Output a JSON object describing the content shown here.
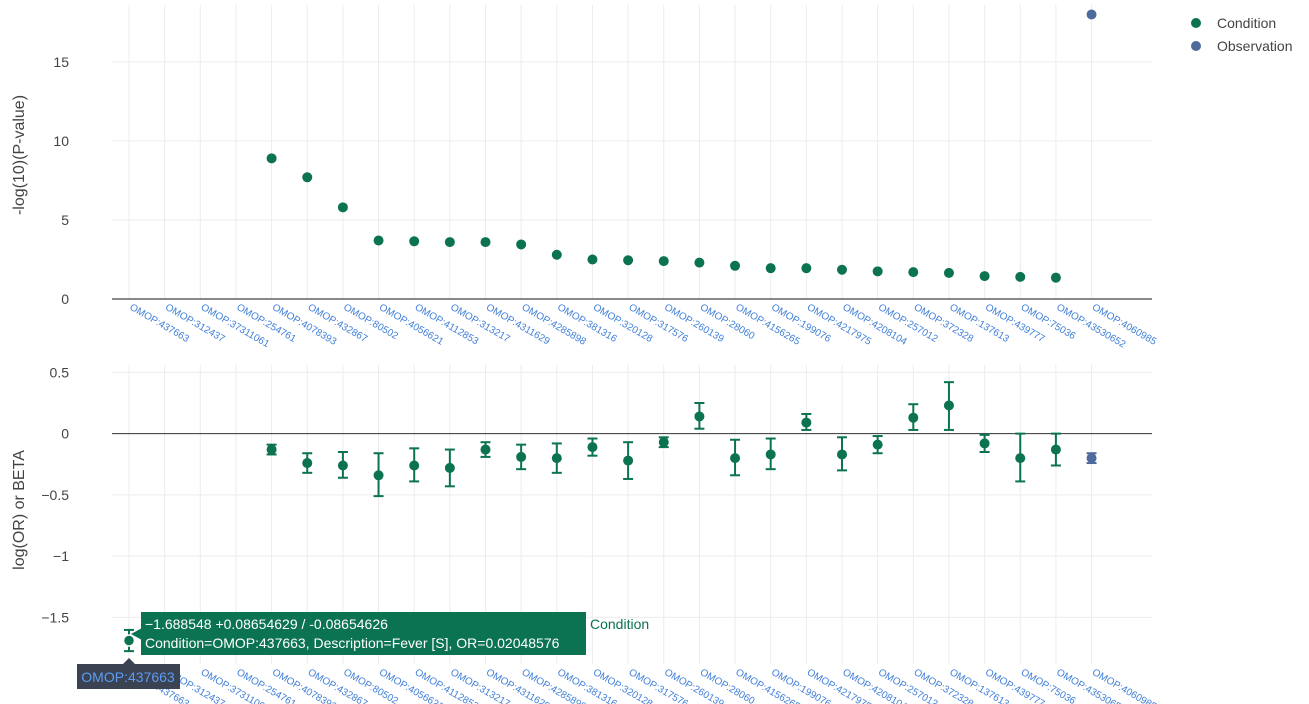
{
  "colors": {
    "Condition": "#0b7352",
    "Observation": "#4f6a9d"
  },
  "legend": [
    "Condition",
    "Observation"
  ],
  "chart_data": [
    {
      "type": "scatter",
      "ylabel": "-log(10)(P-value)",
      "ylim": [
        0,
        18.6
      ],
      "yticks": [
        0,
        5,
        10,
        15
      ],
      "grid": true,
      "legend_position": "top-right",
      "categories": [
        "OMOP:437663",
        "OMOP:312437",
        "OMOP:37311061",
        "OMOP:254761",
        "OMOP:4078393",
        "OMOP:432867",
        "OMOP:80502",
        "OMOP:4056621",
        "OMOP:4112853",
        "OMOP:313217",
        "OMOP:4311629",
        "OMOP:4285898",
        "OMOP:381316",
        "OMOP:320128",
        "OMOP:317576",
        "OMOP:260139",
        "OMOP:28060",
        "OMOP:4156265",
        "OMOP:199076",
        "OMOP:4217975",
        "OMOP:4208104",
        "OMOP:257012",
        "OMOP:372328",
        "OMOP:137613",
        "OMOP:439777",
        "OMOP:75036",
        "OMOP:43530652",
        "OMOP:4060985"
      ],
      "series": [
        {
          "name": "Condition",
          "points": [
            {
              "x": "OMOP:4078393",
              "y": 8.9
            },
            {
              "x": "OMOP:432867",
              "y": 7.7
            },
            {
              "x": "OMOP:80502",
              "y": 5.8
            },
            {
              "x": "OMOP:4056621",
              "y": 3.7
            },
            {
              "x": "OMOP:4112853",
              "y": 3.65
            },
            {
              "x": "OMOP:313217",
              "y": 3.6
            },
            {
              "x": "OMOP:4311629",
              "y": 3.6
            },
            {
              "x": "OMOP:4285898",
              "y": 3.45
            },
            {
              "x": "OMOP:381316",
              "y": 2.8
            },
            {
              "x": "OMOP:320128",
              "y": 2.5
            },
            {
              "x": "OMOP:317576",
              "y": 2.45
            },
            {
              "x": "OMOP:260139",
              "y": 2.4
            },
            {
              "x": "OMOP:28060",
              "y": 2.3
            },
            {
              "x": "OMOP:4156265",
              "y": 2.1
            },
            {
              "x": "OMOP:199076",
              "y": 1.95
            },
            {
              "x": "OMOP:4217975",
              "y": 1.95
            },
            {
              "x": "OMOP:4208104",
              "y": 1.85
            },
            {
              "x": "OMOP:257012",
              "y": 1.75
            },
            {
              "x": "OMOP:372328",
              "y": 1.7
            },
            {
              "x": "OMOP:137613",
              "y": 1.65
            },
            {
              "x": "OMOP:439777",
              "y": 1.45
            },
            {
              "x": "OMOP:75036",
              "y": 1.4
            },
            {
              "x": "OMOP:43530652",
              "y": 1.35
            }
          ]
        },
        {
          "name": "Observation",
          "points": [
            {
              "x": "OMOP:4060985",
              "y": 18.0
            }
          ]
        }
      ]
    },
    {
      "type": "scatter",
      "ylabel": "log(OR) or BETA",
      "ylim": [
        -1.88,
        0.56
      ],
      "yticks": [
        -1.5,
        -1,
        -0.5,
        0,
        0.5
      ],
      "ytick_labels": [
        "−1.5",
        "−1",
        "−0.5",
        "0",
        "0.5"
      ],
      "grid": true,
      "error_bars": true,
      "categories": [
        "OMOP:437663",
        "OMOP:312437",
        "OMOP:37311061",
        "OMOP:254761",
        "OMOP:4078393",
        "OMOP:432867",
        "OMOP:80502",
        "OMOP:4056621",
        "OMOP:4112853",
        "OMOP:313217",
        "OMOP:4311629",
        "OMOP:4285898",
        "OMOP:381316",
        "OMOP:320128",
        "OMOP:317576",
        "OMOP:260139",
        "OMOP:28060",
        "OMOP:4156265",
        "OMOP:199076",
        "OMOP:4217975",
        "OMOP:4208104",
        "OMOP:257012",
        "OMOP:372328",
        "OMOP:137613",
        "OMOP:439777",
        "OMOP:75036",
        "OMOP:43530652",
        "OMOP:4060985"
      ],
      "series": [
        {
          "name": "Condition",
          "points": [
            {
              "x": "OMOP:437663",
              "y": -1.688548,
              "lo": -1.775,
              "hi": -1.602
            },
            {
              "x": "OMOP:4078393",
              "y": -0.13,
              "lo": -0.17,
              "hi": -0.09
            },
            {
              "x": "OMOP:432867",
              "y": -0.24,
              "lo": -0.32,
              "hi": -0.16
            },
            {
              "x": "OMOP:80502",
              "y": -0.26,
              "lo": -0.36,
              "hi": -0.15
            },
            {
              "x": "OMOP:4056621",
              "y": -0.34,
              "lo": -0.51,
              "hi": -0.16
            },
            {
              "x": "OMOP:4112853",
              "y": -0.26,
              "lo": -0.39,
              "hi": -0.12
            },
            {
              "x": "OMOP:313217",
              "y": -0.28,
              "lo": -0.43,
              "hi": -0.13
            },
            {
              "x": "OMOP:4311629",
              "y": -0.13,
              "lo": -0.19,
              "hi": -0.07
            },
            {
              "x": "OMOP:4285898",
              "y": -0.19,
              "lo": -0.29,
              "hi": -0.09
            },
            {
              "x": "OMOP:381316",
              "y": -0.2,
              "lo": -0.32,
              "hi": -0.08
            },
            {
              "x": "OMOP:320128",
              "y": -0.11,
              "lo": -0.18,
              "hi": -0.04
            },
            {
              "x": "OMOP:317576",
              "y": -0.22,
              "lo": -0.37,
              "hi": -0.07
            },
            {
              "x": "OMOP:260139",
              "y": -0.07,
              "lo": -0.11,
              "hi": -0.03
            },
            {
              "x": "OMOP:28060",
              "y": 0.14,
              "lo": 0.04,
              "hi": 0.25
            },
            {
              "x": "OMOP:4156265",
              "y": -0.2,
              "lo": -0.34,
              "hi": -0.05
            },
            {
              "x": "OMOP:199076",
              "y": -0.17,
              "lo": -0.29,
              "hi": -0.04
            },
            {
              "x": "OMOP:4217975",
              "y": 0.09,
              "lo": 0.03,
              "hi": 0.16
            },
            {
              "x": "OMOP:4208104",
              "y": -0.17,
              "lo": -0.3,
              "hi": -0.03
            },
            {
              "x": "OMOP:257012",
              "y": -0.09,
              "lo": -0.16,
              "hi": -0.02
            },
            {
              "x": "OMOP:372328",
              "y": 0.13,
              "lo": 0.03,
              "hi": 0.24
            },
            {
              "x": "OMOP:137613",
              "y": 0.23,
              "lo": 0.03,
              "hi": 0.42
            },
            {
              "x": "OMOP:439777",
              "y": -0.08,
              "lo": -0.15,
              "hi": -0.01
            },
            {
              "x": "OMOP:75036",
              "y": -0.2,
              "lo": -0.39,
              "hi": 0.0
            },
            {
              "x": "OMOP:43530652",
              "y": -0.13,
              "lo": -0.26,
              "hi": 0.0
            }
          ]
        },
        {
          "name": "Observation",
          "points": [
            {
              "x": "OMOP:4060985",
              "y": -0.2,
              "lo": -0.24,
              "hi": -0.16
            }
          ]
        }
      ],
      "hover": {
        "x": "OMOP:437663",
        "line1": "−1.688548 +0.08654629 / -0.08654626",
        "line2": "Condition=OMOP:437663, Description=Fever [S], OR=0.02048576",
        "trace_name": "Condition",
        "axis_label": "OMOP:437663"
      }
    }
  ]
}
